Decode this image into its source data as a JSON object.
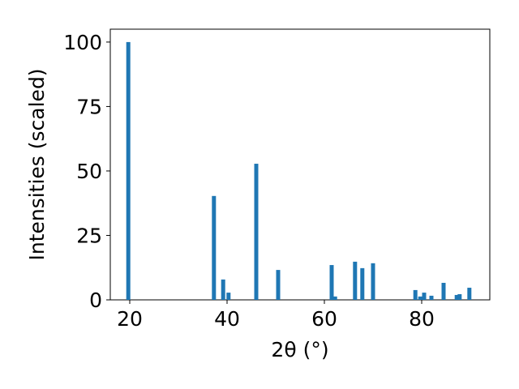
{
  "chart_data": {
    "type": "bar",
    "x_label": "2θ (°)",
    "y_label": "Intensities (scaled)",
    "x": [
      19.7,
      37.3,
      39.2,
      40.3,
      46.0,
      50.5,
      61.5,
      62.2,
      66.3,
      67.8,
      70.0,
      78.7,
      79.7,
      80.5,
      82.0,
      84.5,
      87.2,
      87.8,
      89.8
    ],
    "values": [
      100,
      40.3,
      7.9,
      2.8,
      52.8,
      11.6,
      13.5,
      1.3,
      14.8,
      12.3,
      14.2,
      3.8,
      1.3,
      2.8,
      1.6,
      6.6,
      1.9,
      2.2,
      4.7
    ],
    "color": "#1f77b4",
    "xlim": [
      16,
      94
    ],
    "xticks": [
      20,
      40,
      60,
      80
    ],
    "ylim": [
      0,
      105
    ],
    "yticks": [
      0,
      25,
      50,
      75,
      100
    ]
  }
}
